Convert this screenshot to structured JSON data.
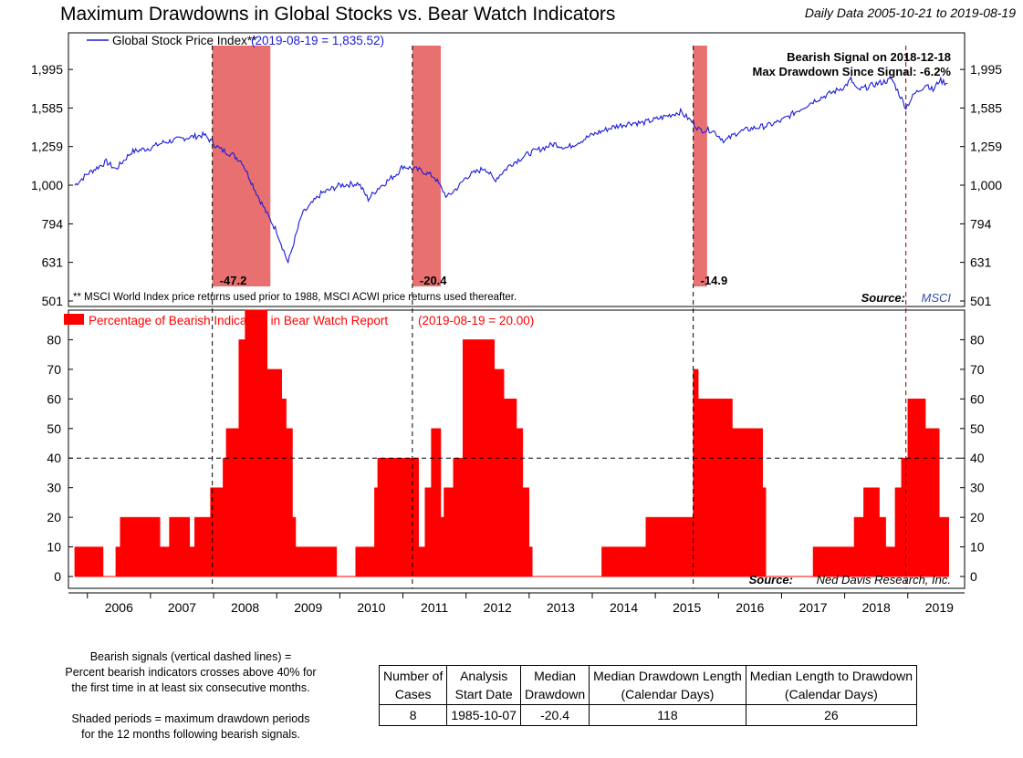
{
  "title": "Maximum Drawdowns in Global Stocks vs. Bear Watch Indicators",
  "date_range": "Daily Data 2005-10-21 to 2019-08-19",
  "chart_data": [
    {
      "type": "line",
      "title": "Global Stock Price Index**",
      "legend_value": "(2019-08-19 = 1,835.52)",
      "y_scale": "log",
      "ylim": [
        501,
        2300
      ],
      "y_ticks": [
        501,
        631,
        794,
        1000,
        1259,
        1585,
        1995
      ],
      "y_tick_labels": [
        "501",
        "631",
        "794",
        "1,000",
        "1,259",
        "1,585",
        "1,995"
      ],
      "series_color": "#1a1adc",
      "x_years": [
        2005.8,
        2006.0,
        2006.3,
        2006.45,
        2006.7,
        2007.0,
        2007.2,
        2007.5,
        2007.6,
        2007.85,
        2008.1,
        2008.3,
        2008.45,
        2008.7,
        2008.85,
        2009.0,
        2009.18,
        2009.4,
        2009.7,
        2010.0,
        2010.3,
        2010.45,
        2010.6,
        2010.9,
        2011.0,
        2011.3,
        2011.5,
        2011.7,
        2011.9,
        2012.0,
        2012.3,
        2012.45,
        2012.7,
        2013.0,
        2013.4,
        2013.6,
        2014.0,
        2014.3,
        2014.6,
        2014.8,
        2015.0,
        2015.4,
        2015.6,
        2015.7,
        2015.9,
        2016.1,
        2016.3,
        2016.5,
        2016.8,
        2017.0,
        2017.5,
        2018.0,
        2018.1,
        2018.2,
        2018.5,
        2018.75,
        2018.97,
        2019.1,
        2019.3,
        2019.4,
        2019.5,
        2019.63
      ],
      "y_values": [
        1000,
        1070,
        1150,
        1100,
        1220,
        1250,
        1290,
        1320,
        1330,
        1350,
        1240,
        1200,
        1150,
        940,
        840,
        760,
        630,
        840,
        950,
        1000,
        1010,
        920,
        980,
        1070,
        1120,
        1090,
        1050,
        930,
        1000,
        1050,
        1110,
        1030,
        1130,
        1210,
        1280,
        1250,
        1350,
        1410,
        1450,
        1450,
        1480,
        1550,
        1450,
        1390,
        1390,
        1300,
        1370,
        1400,
        1430,
        1470,
        1650,
        1800,
        1880,
        1760,
        1830,
        1880,
        1590,
        1720,
        1830,
        1760,
        1870,
        1835
      ],
      "shaded_periods": [
        [
          2007.98,
          2008.9
        ],
        [
          2011.15,
          2011.6
        ],
        [
          2015.6,
          2015.82
        ]
      ],
      "drawdown_labels": [
        {
          "x": 2007.98,
          "text": "-47.2"
        },
        {
          "x": 2011.15,
          "text": "-20.4"
        },
        {
          "x": 2015.6,
          "text": "-14.9"
        }
      ],
      "annotation": [
        "Bearish Signal on 2018-12-18",
        "Max Drawdown Since Signal: -6.2%"
      ],
      "footnote": "** MSCI World Index price returns used prior to 1988, MSCI ACWI price returns used thereafter.",
      "source_label": "Source:",
      "source_name": "MSCI"
    },
    {
      "type": "area",
      "title": "Percentage of Bearish Indicators in Bear Watch Report",
      "legend_value": "(2019-08-19 = 20.00)",
      "ylim": [
        -4,
        90
      ],
      "y_ticks": [
        0,
        10,
        20,
        30,
        40,
        50,
        60,
        70,
        80
      ],
      "threshold": 40,
      "series_color": "#ff0000",
      "step_changes": [
        [
          2005.8,
          10
        ],
        [
          2006.25,
          0
        ],
        [
          2006.45,
          10
        ],
        [
          2006.52,
          20
        ],
        [
          2007.15,
          10
        ],
        [
          2007.3,
          20
        ],
        [
          2007.62,
          10
        ],
        [
          2007.7,
          20
        ],
        [
          2007.95,
          30
        ],
        [
          2008.15,
          40
        ],
        [
          2008.2,
          50
        ],
        [
          2008.4,
          80
        ],
        [
          2008.5,
          90
        ],
        [
          2008.85,
          70
        ],
        [
          2009.08,
          60
        ],
        [
          2009.15,
          50
        ],
        [
          2009.25,
          20
        ],
        [
          2009.3,
          10
        ],
        [
          2009.95,
          0
        ],
        [
          2010.25,
          10
        ],
        [
          2010.55,
          30
        ],
        [
          2010.6,
          40
        ],
        [
          2011.25,
          10
        ],
        [
          2011.35,
          30
        ],
        [
          2011.45,
          50
        ],
        [
          2011.6,
          20
        ],
        [
          2011.65,
          30
        ],
        [
          2011.8,
          40
        ],
        [
          2011.95,
          80
        ],
        [
          2012.45,
          70
        ],
        [
          2012.6,
          60
        ],
        [
          2012.8,
          50
        ],
        [
          2012.9,
          30
        ],
        [
          2013.0,
          10
        ],
        [
          2013.05,
          0
        ],
        [
          2014.15,
          10
        ],
        [
          2014.85,
          20
        ],
        [
          2015.6,
          70
        ],
        [
          2015.68,
          60
        ],
        [
          2016.15,
          60
        ],
        [
          2016.22,
          50
        ],
        [
          2016.7,
          30
        ],
        [
          2016.75,
          0
        ],
        [
          2017.5,
          10
        ],
        [
          2018.15,
          20
        ],
        [
          2018.3,
          30
        ],
        [
          2018.55,
          20
        ],
        [
          2018.65,
          10
        ],
        [
          2018.8,
          30
        ],
        [
          2018.9,
          40
        ],
        [
          2019.0,
          60
        ],
        [
          2019.28,
          50
        ],
        [
          2019.5,
          20
        ],
        [
          2019.65,
          20
        ]
      ],
      "signal_dates": [
        2007.98,
        2011.15,
        2015.6,
        2018.97
      ],
      "source_label": "Source:",
      "source_name": "Ned Davis Research, Inc."
    }
  ],
  "x_axis": {
    "range": [
      2005.7,
      2019.9
    ],
    "tick_labels": [
      "2006",
      "2007",
      "2008",
      "2009",
      "2010",
      "2011",
      "2012",
      "2013",
      "2014",
      "2015",
      "2016",
      "2017",
      "2018",
      "2019"
    ],
    "tick_values": [
      2006.5,
      2007.5,
      2008.5,
      2009.5,
      2010.5,
      2011.5,
      2012.5,
      2013.5,
      2014.5,
      2015.5,
      2016.5,
      2017.5,
      2018.5,
      2019.5
    ]
  },
  "notes": {
    "line1": "Bearish signals (vertical dashed lines) =",
    "line2": "Percent bearish indicators crosses above 40% for",
    "line3": "the first time in at least six consecutive months.",
    "line4": "Shaded periods = maximum drawdown periods",
    "line5": "for the 12 months following bearish signals."
  },
  "table": {
    "headers": [
      [
        "Number of",
        "Cases"
      ],
      [
        "Analysis",
        "Start Date"
      ],
      [
        "Median",
        "Drawdown"
      ],
      [
        "Median Drawdown Length",
        "(Calendar Days)"
      ],
      [
        "Median Length to Drawdown",
        "(Calendar Days)"
      ]
    ],
    "row": [
      "8",
      "1985-10-07",
      "-20.4",
      "118",
      "26"
    ]
  }
}
